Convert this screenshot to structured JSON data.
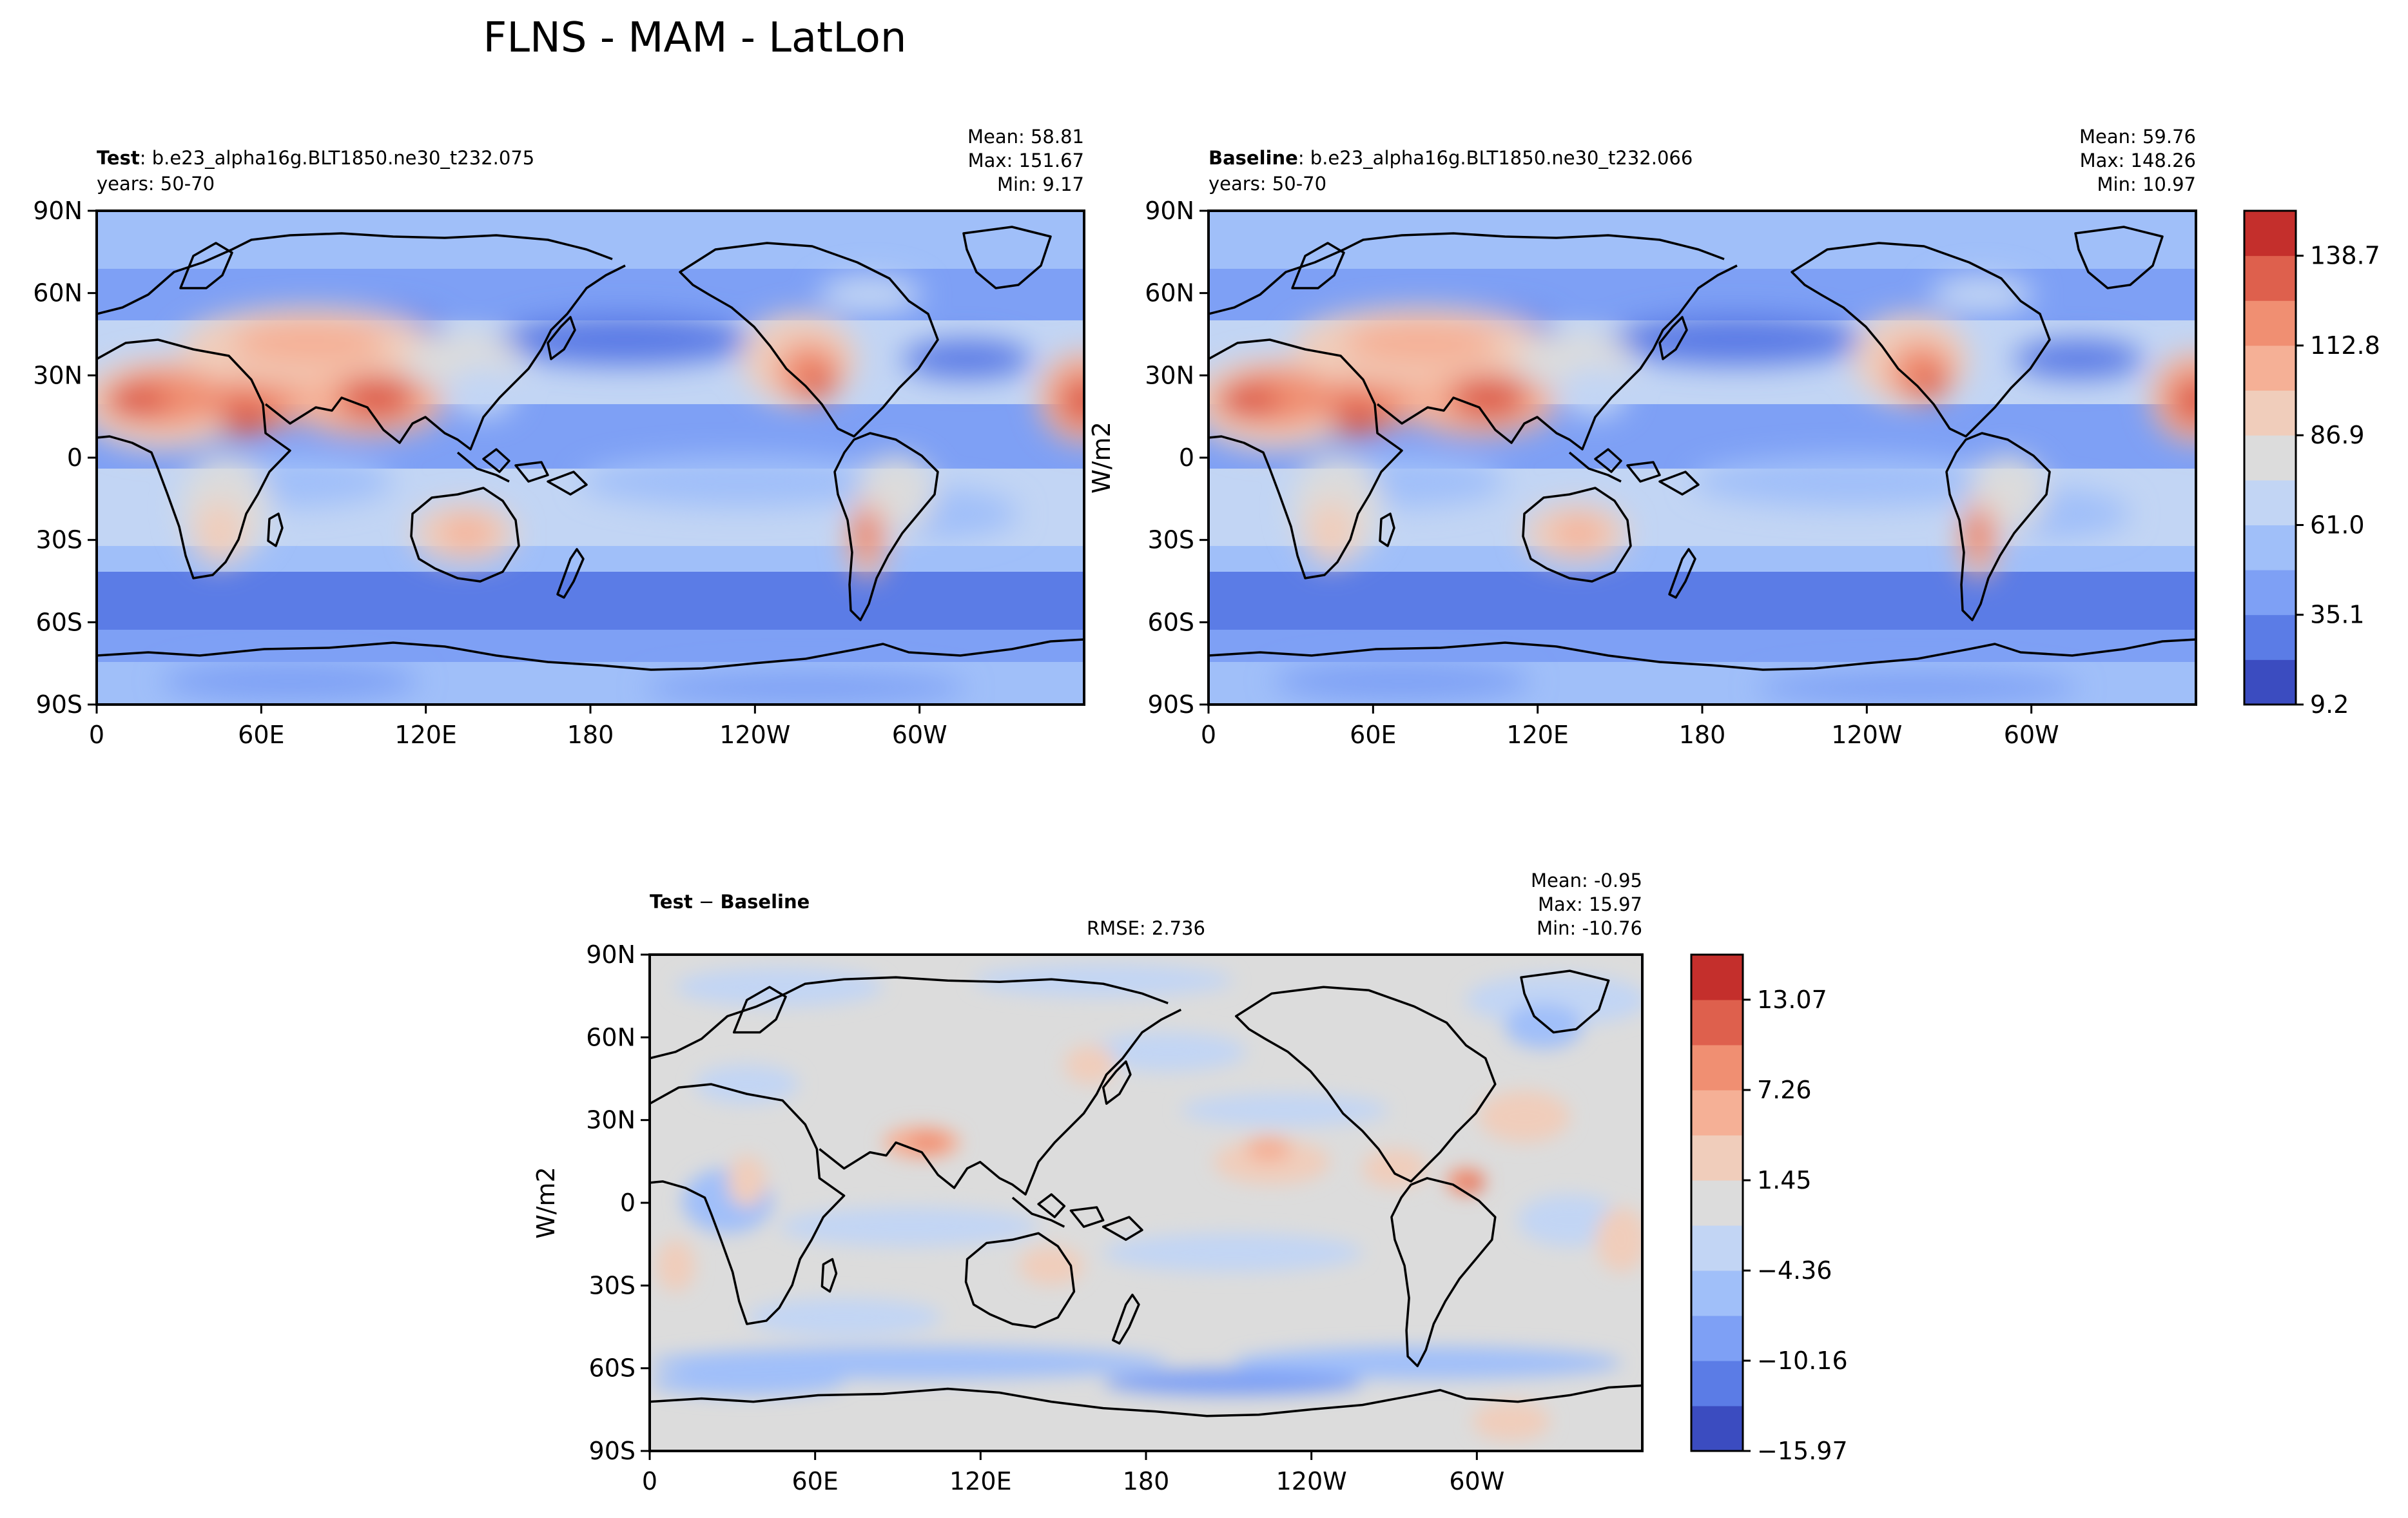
{
  "figure": {
    "title": "FLNS - MAM - LatLon"
  },
  "chart_data": [
    {
      "type": "heatmap",
      "panel": "test",
      "label_bold": "Test",
      "label_rest": ": b.e23_alpha16g.BLT1850.ne30_t232.075",
      "years": "years: 50-70",
      "stats": [
        "Mean: 58.81",
        "Max: 151.67",
        "Min:  9.17"
      ],
      "x_ticks": [
        "0",
        "60E",
        "120E",
        "180",
        "120W",
        "60W"
      ],
      "y_ticks": [
        "90N",
        "60N",
        "30N",
        "0",
        "30S",
        "60S",
        "90S"
      ],
      "xlim": [
        0,
        360
      ],
      "ylim": [
        -90,
        90
      ]
    },
    {
      "type": "heatmap",
      "panel": "baseline",
      "label_bold": "Baseline",
      "label_rest": ": b.e23_alpha16g.BLT1850.ne30_t232.066",
      "years": "years: 50-70",
      "stats": [
        "Mean: 59.76",
        "Max: 148.26",
        "Min: 10.97"
      ],
      "x_ticks": [
        "0",
        "60E",
        "120E",
        "180",
        "120W",
        "60W"
      ],
      "y_ticks": [
        "90N",
        "60N",
        "30N",
        "0",
        "30S",
        "60S",
        "90S"
      ],
      "xlim": [
        0,
        360
      ],
      "ylim": [
        -90,
        90
      ],
      "colorbar": {
        "label": "W/m2",
        "min": 9.2,
        "max": 151.67,
        "ticks": [
          9.2,
          35.1,
          61.0,
          86.9,
          112.8,
          138.7
        ],
        "tick_labels": [
          "9.2",
          "35.1",
          "61.0",
          "86.9",
          "112.8",
          "138.7"
        ],
        "colors": [
          "#3b4cc0",
          "#5b7ce6",
          "#7ea0f5",
          "#a0bff9",
          "#c2d5f4",
          "#dcdcdc",
          "#f0cdbb",
          "#f5b096",
          "#f08f72",
          "#de604d",
          "#c42f2c"
        ]
      }
    },
    {
      "type": "heatmap",
      "panel": "difference",
      "label_bold": "Test",
      "label_rest": " − ",
      "label_bold2": "Baseline",
      "rmse": "RMSE: 2.736",
      "stats": [
        "Mean: -0.95",
        "Max: 15.97",
        "Min: -10.76"
      ],
      "x_ticks": [
        "0",
        "60E",
        "120E",
        "180",
        "120W",
        "60W"
      ],
      "y_ticks": [
        "90N",
        "60N",
        "30N",
        "0",
        "30S",
        "60S",
        "90S"
      ],
      "xlim": [
        0,
        360
      ],
      "ylim": [
        -90,
        90
      ],
      "colorbar": {
        "label": "W/m2",
        "min": -15.97,
        "max": 15.97,
        "ticks": [
          -15.97,
          -10.16,
          -4.36,
          1.45,
          7.26,
          13.07
        ],
        "tick_labels": [
          "−15.97",
          "−10.16",
          "−4.36",
          "1.45",
          "7.26",
          "13.07"
        ],
        "colors": [
          "#3b4cc0",
          "#5b7ce6",
          "#7ea0f5",
          "#a0bff9",
          "#c2d5f4",
          "#dcdcdc",
          "#f0cdbb",
          "#f5b096",
          "#f08f72",
          "#de604d",
          "#c42f2c"
        ]
      }
    }
  ]
}
